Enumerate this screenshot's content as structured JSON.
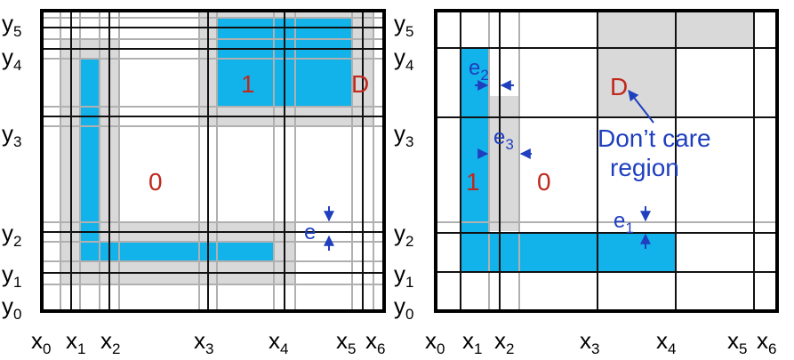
{
  "colors": {
    "blue": "#12b3ea",
    "gray": "#d9d9d9",
    "grid": "#111111",
    "gridLight": "#b0b0b0",
    "regionLabel": "#c0281c",
    "annotation": "#1f3fbf"
  },
  "x_labels": [
    "x0",
    "x1",
    "x2",
    "x3",
    "x4",
    "x5",
    "x6"
  ],
  "y_labels": [
    "y0",
    "y1",
    "y2",
    "y3",
    "y4",
    "y5"
  ],
  "left_panel": {
    "region_labels": {
      "zero": "0",
      "one": "1",
      "dont_care": "D"
    },
    "tolerance_label": "e"
  },
  "right_panel": {
    "region_labels": {
      "zero": "0",
      "one": "1",
      "dont_care": "D"
    },
    "tolerance_labels": {
      "e1": "e1",
      "e2": "e2",
      "e3": "e3"
    },
    "note": {
      "line1": "Don’t care",
      "line2": "region"
    }
  }
}
